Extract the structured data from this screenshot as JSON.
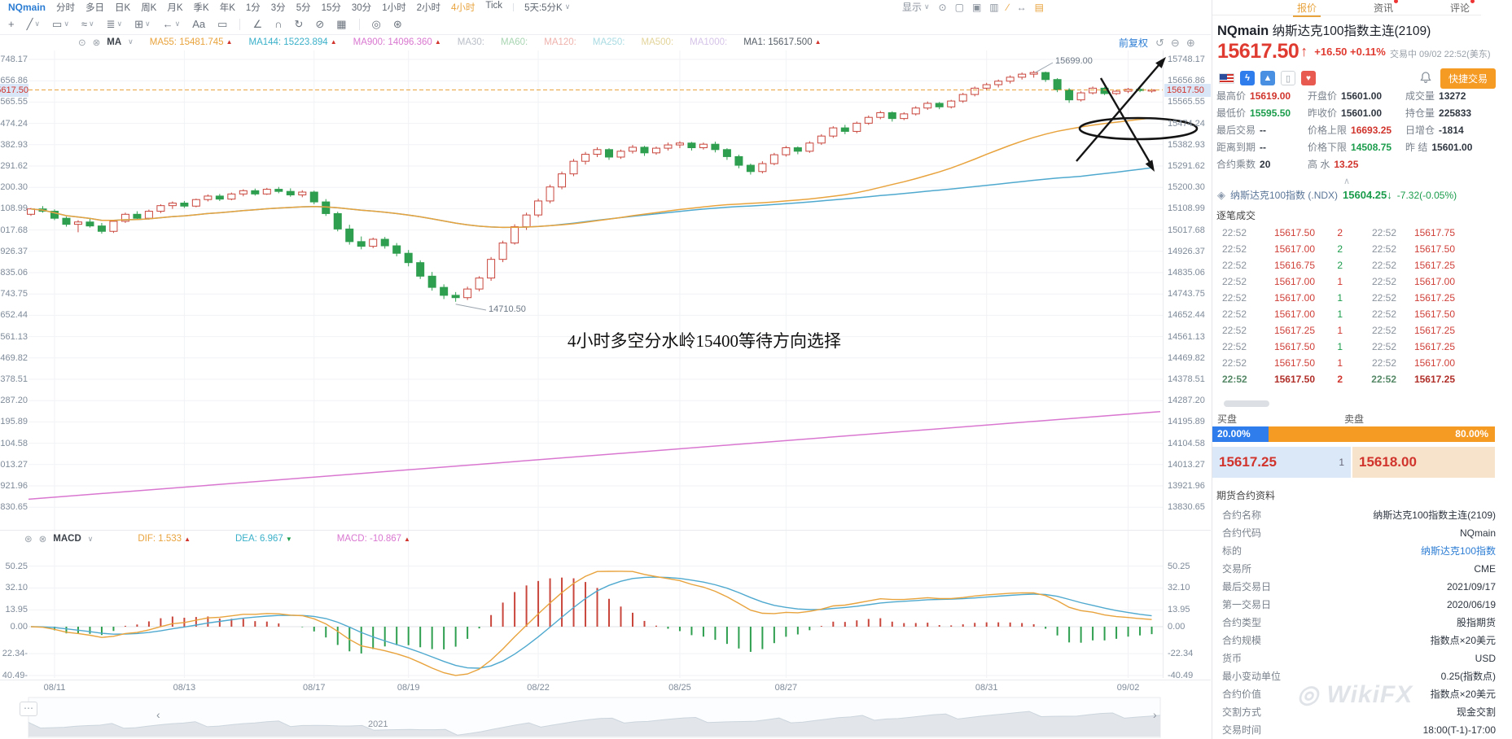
{
  "colors": {
    "accent_orange": "#e8a33d",
    "up_red": "#d0342c",
    "down_green": "#1a9c4b",
    "link_blue": "#2b7cd3",
    "buy_blue": "#2f7ded",
    "sell_orange": "#f59a23",
    "candle_red": "#c9463d",
    "candle_green": "#2e9e4f",
    "ma55": "#e8a33d",
    "ma144": "#4fa9cf",
    "ma900": "#d977d0"
  },
  "ui": {
    "chevron": "∨",
    "collapse": "∧",
    "ellipsis": "⋯",
    "handle_left": "‹",
    "handle_right": "›"
  },
  "topbar": {
    "symbol": "NQmain",
    "timeframes": [
      "分时",
      "多日",
      "日K",
      "周K",
      "月K",
      "季K",
      "年K",
      "1分",
      "3分",
      "5分",
      "15分",
      "30分",
      "1小时",
      "2小时",
      "4小时",
      "Tick"
    ],
    "active_timeframe": "4小时",
    "range_selector": "5天:5分K",
    "display_label": "显示",
    "top_icons": [
      {
        "name": "gear-icon",
        "glyph": "⊙",
        "orange": false
      },
      {
        "name": "layout-icon",
        "glyph": "▢",
        "orange": false
      },
      {
        "name": "screenshot-icon",
        "glyph": "▣",
        "orange": false
      },
      {
        "name": "gallery-icon",
        "glyph": "▥",
        "orange": false
      },
      {
        "name": "pencil-icon",
        "glyph": "∕",
        "orange": true
      },
      {
        "name": "expand-icon",
        "glyph": "↔",
        "orange": false
      },
      {
        "name": "notebook-icon",
        "glyph": "▤",
        "orange": true
      }
    ]
  },
  "panel_tabs": [
    {
      "label": "报价",
      "active": true,
      "dot": false
    },
    {
      "label": "资讯",
      "active": false,
      "dot": true
    },
    {
      "label": "评论",
      "active": false,
      "dot": true
    }
  ],
  "draw_toolbar": [
    {
      "name": "cursor-move-icon",
      "glyph": "+",
      "chevron": false
    },
    {
      "name": "trend-line-icon",
      "glyph": "╱",
      "chevron": true
    },
    {
      "name": "rectangle-icon",
      "glyph": "▭",
      "chevron": true
    },
    {
      "name": "wave-icon",
      "glyph": "≈",
      "chevron": true
    },
    {
      "name": "text-lines-icon",
      "glyph": "≣",
      "chevron": true
    },
    {
      "name": "fib-grid-icon",
      "glyph": "⊞",
      "chevron": true
    },
    {
      "name": "arrow-tool-icon",
      "glyph": "←",
      "chevron": true
    },
    {
      "name": "text-tool-icon",
      "glyph": "Aa",
      "chevron": false
    },
    {
      "name": "comment-icon",
      "glyph": "▭",
      "chevron": false
    },
    {
      "name": "divider",
      "glyph": "",
      "chevron": false
    },
    {
      "name": "angle-icon",
      "glyph": "∠",
      "chevron": false
    },
    {
      "name": "magnet-icon",
      "glyph": "∩",
      "chevron": false
    },
    {
      "name": "replay-icon",
      "glyph": "↻",
      "chevron": false
    },
    {
      "name": "hide-icon",
      "glyph": "⊘",
      "chevron": false
    },
    {
      "name": "trash-icon",
      "glyph": "▦",
      "chevron": false
    },
    {
      "name": "divider",
      "glyph": "",
      "chevron": false
    },
    {
      "name": "compare-icon",
      "glyph": "◎",
      "chevron": false
    },
    {
      "name": "settings-icon",
      "glyph": "⊛",
      "chevron": false
    }
  ],
  "ma_bar": {
    "camera_icon": "⊙",
    "close_icon": "⊗",
    "name": "MA",
    "items": [
      {
        "text": "MA55: 15481.745",
        "arrow": "▲",
        "arrow_color": "red",
        "color": "#e8a33d"
      },
      {
        "text": "MA144: 15223.894",
        "arrow": "▲",
        "arrow_color": "red",
        "color": "#3ab0c9"
      },
      {
        "text": "MA900: 14096.360",
        "arrow": "▲",
        "arrow_color": "red",
        "color": "#d977d0"
      },
      {
        "text": "MA30:",
        "arrow": "",
        "arrow_color": "",
        "color": "#b9bec7"
      },
      {
        "text": "MA60:",
        "arrow": "",
        "arrow_color": "",
        "color": "#a8d5b2"
      },
      {
        "text": "MA120:",
        "arrow": "",
        "arrow_color": "",
        "color": "#eeb1ac"
      },
      {
        "text": "MA250:",
        "arrow": "",
        "arrow_color": "",
        "color": "#a9dbe3"
      },
      {
        "text": "MA500:",
        "arrow": "",
        "arrow_color": "",
        "color": "#e3d49a"
      },
      {
        "text": "MA1000:",
        "arrow": "",
        "arrow_color": "",
        "color": "#d5c3e8"
      },
      {
        "text": "MA1: 15617.500",
        "arrow": "▲",
        "arrow_color": "red",
        "color": "#555d66"
      }
    ],
    "adjust_label": "前复权",
    "history_icons": [
      "↺",
      "⊖",
      "⊕"
    ]
  },
  "macd_bar": {
    "settings_icon": "⊛",
    "close_icon": "⊗",
    "name": "MACD",
    "items": [
      {
        "text": "DIF: 1.533",
        "arrow": "▲",
        "arrow_color": "red",
        "color": "#e8a33d"
      },
      {
        "text": "DEA: 6.967",
        "arrow": "▼",
        "arrow_color": "green",
        "color": "#3ab0c9"
      },
      {
        "text": "MACD: -10.867",
        "arrow": "▲",
        "arrow_color": "red",
        "color": "#d977d0"
      }
    ]
  },
  "chart_data": {
    "type": "candlestick",
    "title": "NQmain 纳斯达克100指数主连(2109) 4小时K线",
    "price_axis": [
      "15748.17",
      "15656.86",
      "15565.55",
      "15474.24",
      "15382.93",
      "15291.62",
      "15200.30",
      "15108.99",
      "15017.68",
      "14926.37",
      "14835.06",
      "14743.75",
      "14652.44",
      "14561.13",
      "14469.82",
      "14378.51",
      "14287.20",
      "14195.89",
      "14104.58",
      "14013.27",
      "13921.96",
      "13830.65"
    ],
    "current_price": "15617.50",
    "macd_axis": [
      "50.25",
      "32.10",
      "13.95",
      "0.00",
      "-22.34",
      "-40.49"
    ],
    "macd_axis_values": [
      50.25,
      32.1,
      13.95,
      0,
      -22.34,
      -40.49
    ],
    "macd_values": {
      "dif": 1.533,
      "dea": 6.967,
      "macd": -10.867
    },
    "dates": [
      {
        "label": "08/11",
        "i": 2
      },
      {
        "label": "08/13",
        "i": 13
      },
      {
        "label": "08/17",
        "i": 24
      },
      {
        "label": "08/19",
        "i": 32
      },
      {
        "label": "08/22",
        "i": 43
      },
      {
        "label": "08/25",
        "i": 55
      },
      {
        "label": "08/27",
        "i": 64
      },
      {
        "label": "08/31",
        "i": 81
      },
      {
        "label": "09/02",
        "i": 93
      }
    ],
    "high_label": {
      "text": "15699.00",
      "candle": 85
    },
    "low_label": {
      "text": "14710.50",
      "candle": 36
    },
    "ma_windows": {
      "ma55": 45,
      "ma144": 90
    },
    "ma900_line": {
      "start": 13865,
      "end": 14240
    },
    "annotation_text": "4小时多空分水岭15400等待方向选择",
    "navigator_year": "2021",
    "candles": [
      [
        15085,
        15112,
        15078,
        15108
      ],
      [
        15108,
        15120,
        15092,
        15098
      ],
      [
        15098,
        15106,
        15060,
        15068
      ],
      [
        15068,
        15075,
        15032,
        15042
      ],
      [
        15042,
        15060,
        15008,
        15052
      ],
      [
        15052,
        15066,
        15028,
        15035
      ],
      [
        15035,
        15048,
        15002,
        15012
      ],
      [
        15012,
        15060,
        15005,
        15055
      ],
      [
        15055,
        15092,
        15048,
        15085
      ],
      [
        15085,
        15098,
        15060,
        15068
      ],
      [
        15068,
        15105,
        15062,
        15098
      ],
      [
        15098,
        15128,
        15090,
        15122
      ],
      [
        15122,
        15140,
        15108,
        15133
      ],
      [
        15133,
        15142,
        15112,
        15120
      ],
      [
        15120,
        15152,
        15115,
        15148
      ],
      [
        15148,
        15170,
        15140,
        15163
      ],
      [
        15163,
        15172,
        15142,
        15150
      ],
      [
        15150,
        15178,
        15145,
        15172
      ],
      [
        15172,
        15192,
        15162,
        15186
      ],
      [
        15186,
        15195,
        15165,
        15172
      ],
      [
        15172,
        15198,
        15168,
        15192
      ],
      [
        15192,
        15202,
        15175,
        15183
      ],
      [
        15183,
        15196,
        15160,
        15168
      ],
      [
        15168,
        15188,
        15158,
        15180
      ],
      [
        15180,
        15186,
        15128,
        15138
      ],
      [
        15138,
        15150,
        15078,
        15088
      ],
      [
        15088,
        15096,
        15012,
        15022
      ],
      [
        15022,
        15040,
        14955,
        14968
      ],
      [
        14968,
        14990,
        14935,
        14948
      ],
      [
        14948,
        14985,
        14940,
        14978
      ],
      [
        14978,
        14988,
        14938,
        14950
      ],
      [
        14950,
        14962,
        14905,
        14918
      ],
      [
        14918,
        14932,
        14862,
        14878
      ],
      [
        14878,
        14888,
        14808,
        14820
      ],
      [
        14820,
        14838,
        14758,
        14772
      ],
      [
        14772,
        14785,
        14722,
        14738
      ],
      [
        14738,
        14752,
        14710.5,
        14728
      ],
      [
        14728,
        14775,
        14718,
        14765
      ],
      [
        14765,
        14820,
        14755,
        14812
      ],
      [
        14812,
        14902,
        14800,
        14892
      ],
      [
        14892,
        14972,
        14880,
        14962
      ],
      [
        14962,
        15042,
        14955,
        15032
      ],
      [
        15032,
        15092,
        15018,
        15082
      ],
      [
        15082,
        15152,
        15072,
        15142
      ],
      [
        15142,
        15212,
        15132,
        15202
      ],
      [
        15202,
        15268,
        15192,
        15258
      ],
      [
        15258,
        15322,
        15248,
        15312
      ],
      [
        15312,
        15352,
        15298,
        15342
      ],
      [
        15342,
        15372,
        15330,
        15362
      ],
      [
        15362,
        15368,
        15318,
        15330
      ],
      [
        15330,
        15362,
        15322,
        15355
      ],
      [
        15355,
        15382,
        15345,
        15372
      ],
      [
        15372,
        15378,
        15335,
        15348
      ],
      [
        15348,
        15375,
        15340,
        15368
      ],
      [
        15368,
        15392,
        15358,
        15382
      ],
      [
        15382,
        15398,
        15368,
        15390
      ],
      [
        15390,
        15395,
        15358,
        15370
      ],
      [
        15370,
        15392,
        15362,
        15385
      ],
      [
        15385,
        15396,
        15350,
        15362
      ],
      [
        15362,
        15368,
        15318,
        15332
      ],
      [
        15332,
        15340,
        15282,
        15295
      ],
      [
        15295,
        15302,
        15255,
        15268
      ],
      [
        15268,
        15312,
        15260,
        15302
      ],
      [
        15302,
        15348,
        15295,
        15340
      ],
      [
        15340,
        15378,
        15332,
        15370
      ],
      [
        15370,
        15376,
        15342,
        15355
      ],
      [
        15355,
        15398,
        15348,
        15390
      ],
      [
        15390,
        15428,
        15382,
        15420
      ],
      [
        15420,
        15462,
        15412,
        15455
      ],
      [
        15455,
        15468,
        15428,
        15440
      ],
      [
        15440,
        15482,
        15432,
        15475
      ],
      [
        15475,
        15508,
        15468,
        15500
      ],
      [
        15500,
        15528,
        15492,
        15520
      ],
      [
        15520,
        15526,
        15482,
        15495
      ],
      [
        15495,
        15522,
        15488,
        15515
      ],
      [
        15515,
        15548,
        15508,
        15540
      ],
      [
        15540,
        15568,
        15532,
        15560
      ],
      [
        15560,
        15566,
        15535,
        15545
      ],
      [
        15545,
        15575,
        15538,
        15570
      ],
      [
        15570,
        15605,
        15562,
        15598
      ],
      [
        15598,
        15632,
        15590,
        15625
      ],
      [
        15625,
        15648,
        15615,
        15640
      ],
      [
        15640,
        15662,
        15628,
        15655
      ],
      [
        15655,
        15680,
        15645,
        15672
      ],
      [
        15672,
        15692,
        15662,
        15685
      ],
      [
        15685,
        15699,
        15670,
        15692
      ],
      [
        15692,
        15696,
        15652,
        15662
      ],
      [
        15662,
        15668,
        15608,
        15618
      ],
      [
        15618,
        15625,
        15562,
        15575
      ],
      [
        15575,
        15612,
        15568,
        15605
      ],
      [
        15605,
        15632,
        15598,
        15625
      ],
      [
        15625,
        15630,
        15595.5,
        15602
      ],
      [
        15602,
        15618,
        15596,
        15612
      ],
      [
        15612,
        15626,
        15604,
        15620
      ],
      [
        15620,
        15628,
        15608,
        15615
      ],
      [
        15615,
        15622,
        15606,
        15617.5
      ]
    ]
  },
  "panel": {
    "header_symbol": "NQmain",
    "header_name": "纳斯达克100指数主连(2109)",
    "price": "15617.50",
    "price_arrow": "↑",
    "change": "+16.50 +0.11%",
    "session": "交易中 09/02 22:52(美东)",
    "quick_trade_label": "快捷交易",
    "lightning_glyph": "ϟ",
    "mountain_glyph": "▲",
    "bookmark_glyph": "▯",
    "heart_glyph": "♥",
    "quote_grid": [
      {
        "l": "最高价",
        "v": "15619.00",
        "c": "red"
      },
      {
        "l": "开盘价",
        "v": "15601.00",
        "c": "dark"
      },
      {
        "l": "成交量",
        "v": "13272",
        "c": "dark"
      },
      {
        "l": "最低价",
        "v": "15595.50",
        "c": "green"
      },
      {
        "l": "昨收价",
        "v": "15601.00",
        "c": "dark"
      },
      {
        "l": "持仓量",
        "v": "225833",
        "c": "dark"
      },
      {
        "l": "最后交易",
        "v": "--",
        "c": "dark"
      },
      {
        "l": "价格上限",
        "v": "16693.25",
        "c": "red"
      },
      {
        "l": "日增仓",
        "v": "-1814",
        "c": "dark"
      },
      {
        "l": "距离到期",
        "v": "--",
        "c": "dark"
      },
      {
        "l": "价格下限",
        "v": "14508.75",
        "c": "green"
      },
      {
        "l": "昨  结",
        "v": "15601.00",
        "c": "dark"
      },
      {
        "l": "合约乘数",
        "v": "20",
        "c": "dark"
      },
      {
        "l": "高  水",
        "v": "13.25",
        "c": "red"
      },
      {
        "l": "",
        "v": "",
        "c": "dark"
      }
    ],
    "index_row": {
      "icon": "◈",
      "name": "纳斯达克100指数",
      "code": "(.NDX)",
      "price": "15604.25",
      "arrow": "↓",
      "change": "-7.32(-0.05%)"
    },
    "ticks_title": "逐笔成交",
    "ticks": [
      {
        "t": "22:52",
        "p": "15617.50",
        "v": "2",
        "vc": "red",
        "t2": "22:52",
        "p2": "15617.75",
        "last": false
      },
      {
        "t": "22:52",
        "p": "15617.00",
        "v": "2",
        "vc": "green",
        "t2": "22:52",
        "p2": "15617.50",
        "last": false
      },
      {
        "t": "22:52",
        "p": "15616.75",
        "v": "2",
        "vc": "green",
        "t2": "22:52",
        "p2": "15617.25",
        "last": false
      },
      {
        "t": "22:52",
        "p": "15617.00",
        "v": "1",
        "vc": "red",
        "t2": "22:52",
        "p2": "15617.00",
        "last": false
      },
      {
        "t": "22:52",
        "p": "15617.00",
        "v": "1",
        "vc": "green",
        "t2": "22:52",
        "p2": "15617.25",
        "last": false
      },
      {
        "t": "22:52",
        "p": "15617.00",
        "v": "1",
        "vc": "green",
        "t2": "22:52",
        "p2": "15617.50",
        "last": false
      },
      {
        "t": "22:52",
        "p": "15617.25",
        "v": "1",
        "vc": "red",
        "t2": "22:52",
        "p2": "15617.25",
        "last": false
      },
      {
        "t": "22:52",
        "p": "15617.50",
        "v": "1",
        "vc": "green",
        "t2": "22:52",
        "p2": "15617.25",
        "last": false
      },
      {
        "t": "22:52",
        "p": "15617.50",
        "v": "1",
        "vc": "red",
        "t2": "22:52",
        "p2": "15617.00",
        "last": false
      },
      {
        "t": "22:52",
        "p": "15617.50",
        "v": "2",
        "vc": "red",
        "t2": "22:52",
        "p2": "15617.25",
        "last": true
      }
    ],
    "depth": {
      "buy_label": "买盘",
      "sell_label": "卖盘",
      "buy_pct": "20.00%",
      "sell_pct": "80.00%",
      "buy_ratio": 0.2,
      "bid": "15617.25",
      "bid_vol": "1",
      "ask": "15618.00"
    },
    "info_title": "期货合约资料",
    "info_rows": [
      {
        "l": "合约名称",
        "v": "纳斯达克100指数主连(2109)",
        "link": false
      },
      {
        "l": "合约代码",
        "v": "NQmain",
        "link": false
      },
      {
        "l": "标的",
        "v": "纳斯达克100指数",
        "link": true
      },
      {
        "l": "交易所",
        "v": "CME",
        "link": false
      },
      {
        "l": "最后交易日",
        "v": "2021/09/17",
        "link": false
      },
      {
        "l": "第一交易日",
        "v": "2020/06/19",
        "link": false
      },
      {
        "l": "合约类型",
        "v": "股指期货",
        "link": false
      },
      {
        "l": "合约规模",
        "v": "指数点×20美元",
        "link": false
      },
      {
        "l": "货币",
        "v": "USD",
        "link": false
      },
      {
        "l": "最小变动单位",
        "v": "0.25(指数点)",
        "link": false
      },
      {
        "l": "合约价值",
        "v": "指数点×20美元",
        "link": false
      },
      {
        "l": "交割方式",
        "v": "现金交割",
        "link": false
      },
      {
        "l": "交易时间",
        "v": "18:00(T-1)-17:00",
        "link": false
      }
    ],
    "watermark": "◎ WikiFX"
  }
}
